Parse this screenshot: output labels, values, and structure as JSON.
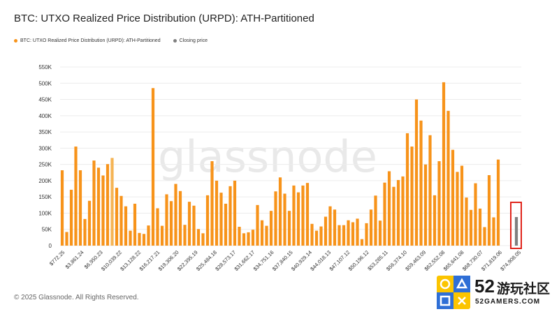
{
  "chart_title": "BTC: UTXO Realized Price Distribution (URPD): ATH-Partitioned",
  "legend": {
    "series1": {
      "label": "BTC: UTXO Realized Price Distribution (URPD): ATH-Partitioned",
      "color": "#f7931a"
    },
    "series2": {
      "label": "Closing price",
      "color": "#7f7f7f"
    }
  },
  "watermark": "glassnode",
  "footer": "© 2025 Glassnode. All Rights Reserved.",
  "badge": {
    "number": "52",
    "cn": "游玩社区",
    "en": "52GAMERS.COM"
  },
  "colors": {
    "bar": "#f7931a",
    "bar_light": "#f5b455",
    "closing": "#7f7f7f",
    "highlight_box": "#e0241b"
  },
  "chart_data": {
    "type": "bar",
    "title": "BTC: UTXO Realized Price Distribution (URPD): ATH-Partitioned",
    "xlabel": "",
    "ylabel": "",
    "ylim": [
      0,
      550000
    ],
    "y_ticks": [
      0,
      50000,
      100000,
      150000,
      200000,
      250000,
      300000,
      350000,
      400000,
      450000,
      500000,
      550000
    ],
    "y_tick_labels": [
      "0",
      "50K",
      "100K",
      "150K",
      "200K",
      "250K",
      "300K",
      "350K",
      "400K",
      "450K",
      "500K",
      "550K"
    ],
    "x_tick_labels": [
      "$772.25",
      "$3,861.24",
      "$6,950.23",
      "$10,039.22",
      "$13,128.22",
      "$16,217.21",
      "$19,306.20",
      "$22,395.19",
      "$25,484.18",
      "$28,573.17",
      "$31,662.17",
      "$34,751.16",
      "$37,840.15",
      "$40,929.14",
      "$44,018.13",
      "$47,107.12",
      "$50,196.12",
      "$53,285.11",
      "$56,374.10",
      "$59,463.09",
      "$62,552.08",
      "$65,641.08",
      "$68,730.07",
      "$71,819.06",
      "$74,908.05"
    ],
    "grid": true,
    "series": [
      {
        "name": "BTC: UTXO Realized Price Distribution (URPD): ATH-Partitioned",
        "color": "#f7931a",
        "values": [
          232000,
          42000,
          172000,
          305000,
          232000,
          82000,
          138000,
          262000,
          240000,
          216000,
          251000,
          270000,
          178000,
          153000,
          121000,
          46000,
          129000,
          39000,
          36000,
          62000,
          485000,
          115000,
          61000,
          158000,
          137000,
          190000,
          168000,
          64000,
          135000,
          123000,
          51000,
          38000,
          155000,
          260000,
          200000,
          163000,
          129000,
          183000,
          200000,
          58000,
          38000,
          41000,
          49000,
          125000,
          78000,
          61000,
          107000,
          167000,
          210000,
          160000,
          107000,
          185000,
          164000,
          185000,
          193000,
          67000,
          46000,
          59000,
          89000,
          121000,
          111000,
          63000,
          63000,
          78000,
          72000,
          83000,
          20000,
          69000,
          111000,
          154000,
          77000,
          194000,
          229000,
          181000,
          202000,
          213000,
          346000,
          305000,
          450000,
          385000,
          250000,
          340000,
          155000,
          260000,
          503000,
          415000,
          295000,
          227000,
          246000,
          148000,
          110000,
          192000,
          114000,
          57000,
          217000,
          87000,
          265000
        ],
        "light_indices": [
          11
        ]
      },
      {
        "name": "Closing price",
        "color": "#7f7f7f",
        "values": [
          88000
        ]
      }
    ],
    "closing_price_position": "last bucket, highlighted by red box"
  }
}
